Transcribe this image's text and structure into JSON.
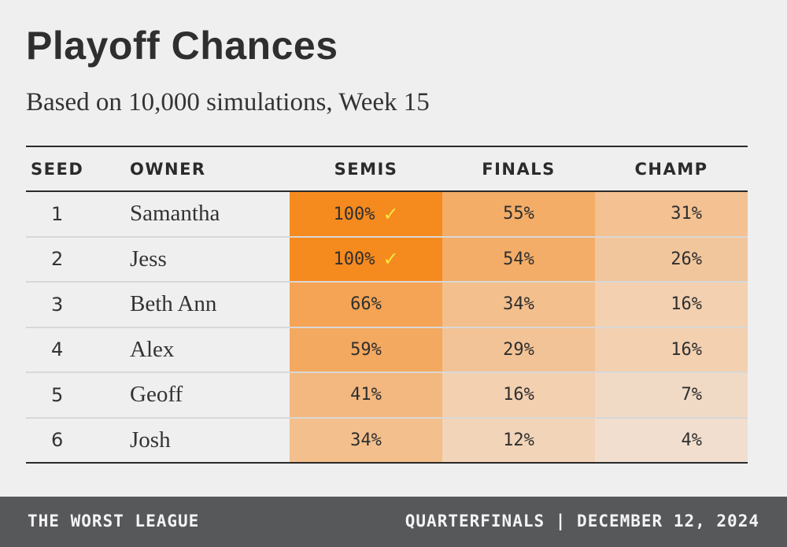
{
  "header": {
    "title": "Playoff Chances",
    "subtitle": "Based on 10,000 simulations, Week 15"
  },
  "columns": [
    "SEED",
    "OWNER",
    "SEMIS",
    "FINALS",
    "CHAMP"
  ],
  "check_icon": "checkmark-icon",
  "colors": {
    "high": "#f58a1f",
    "low": "#f1e5dc",
    "check": "#f5e63a",
    "footer_bg": "#57585a"
  },
  "chart_data": {
    "type": "table",
    "title": "Playoff Chances",
    "subtitle": "Based on 10,000 simulations, Week 15",
    "columns": [
      "SEED",
      "OWNER",
      "SEMIS",
      "FINALS",
      "CHAMP"
    ],
    "rows": [
      {
        "seed": "1",
        "owner": "Samantha",
        "semis": 100,
        "finals": 55,
        "champ": 31,
        "semis_clinched": true
      },
      {
        "seed": "2",
        "owner": "Jess",
        "semis": 100,
        "finals": 54,
        "champ": 26,
        "semis_clinched": true
      },
      {
        "seed": "3",
        "owner": "Beth Ann",
        "semis": 66,
        "finals": 34,
        "champ": 16,
        "semis_clinched": false
      },
      {
        "seed": "4",
        "owner": "Alex",
        "semis": 59,
        "finals": 29,
        "champ": 16,
        "semis_clinched": false
      },
      {
        "seed": "5",
        "owner": "Geoff",
        "semis": 41,
        "finals": 16,
        "champ": 7,
        "semis_clinched": false
      },
      {
        "seed": "6",
        "owner": "Josh",
        "semis": 34,
        "finals": 12,
        "champ": 4,
        "semis_clinched": false
      }
    ]
  },
  "footer": {
    "left": "THE WORST LEAGUE",
    "right": "QUARTERFINALS | DECEMBER 12, 2024"
  }
}
